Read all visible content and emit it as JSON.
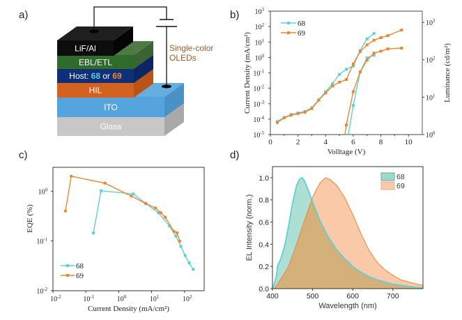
{
  "panels": {
    "a": {
      "label": "a)",
      "layers": [
        {
          "name": "LiF/Al",
          "front": "#0d0d0d",
          "top": "#1f1f1f",
          "side": "#050505",
          "text_color": "#ffffff"
        },
        {
          "name": "EBL/ETL",
          "front": "#2f6b2a",
          "top": "#4f7a45",
          "side": "#3d6335",
          "text_color": "#ffffff"
        },
        {
          "name": "Host",
          "front": "#0f2f78",
          "top": "#1f3b85",
          "side": "#0b2664",
          "text_color": "#ffffff"
        },
        {
          "name": "HIL",
          "front": "#d4621f",
          "top": "#c9692b",
          "side": "#b85418",
          "text_color": "#ffffff"
        },
        {
          "name": "ITO",
          "front": "#55a4dd",
          "top": "#66aee2",
          "side": "#4a91c6",
          "text_color": "#ffffff"
        },
        {
          "name": "Glass",
          "front": "#c7c7c7",
          "top": "#d4d4d4",
          "side": "#a9a9a9",
          "text_color": "#ffffff"
        }
      ],
      "host_prefix": "Host: ",
      "host_68": "68",
      "host_or": " or ",
      "host_69": "69",
      "host_68_color": "#4fd1de",
      "host_69_color": "#f08a3a",
      "caption_line1": "Single-color",
      "caption_line2": "OLEDs",
      "caption_color": "#9a5a2a"
    },
    "b": {
      "label": "b)"
    },
    "c": {
      "label": "c)"
    },
    "d": {
      "label": "d)"
    }
  },
  "colors": {
    "series_68": "#5fd0d3",
    "series_69": "#ef8434",
    "fill_68": "#9fd9cc",
    "fill_69": "#f9c9a8",
    "overlap": "#d4b07a"
  },
  "chart_data": [
    {
      "id": "b",
      "type": "line",
      "title": "",
      "xlabel": "Volltage (V)",
      "ylabel": "Current Density (mA/cm²)",
      "y2label": "Luminance (cd/m²)",
      "xlim": [
        0,
        11
      ],
      "ylim_log10": [
        -5,
        3
      ],
      "y2lim_log10": [
        0,
        3.3
      ],
      "xticks": [
        0,
        2,
        4,
        6,
        8,
        10
      ],
      "xtick_labels": [
        "0",
        "2",
        "4",
        "6",
        "8",
        "10"
      ],
      "yticks_exp": [
        3,
        2,
        1,
        0,
        -1,
        -2,
        -3,
        -4,
        -5
      ],
      "y2ticks_exp": [
        0,
        1,
        2,
        3
      ],
      "legend": {
        "position": "top-left",
        "entries": [
          "68",
          "69"
        ]
      },
      "series": [
        {
          "name": "68",
          "axis": "left",
          "quantity": "current_density",
          "x": [
            0.5,
            1.0,
            1.5,
            2.0,
            2.5,
            3.0,
            3.5,
            4.0,
            4.5,
            5.0,
            5.5,
            6.0,
            6.5,
            7.0,
            7.5
          ],
          "y": [
            7e-05,
            0.00013,
            0.0002,
            0.00025,
            0.00032,
            0.00055,
            0.0018,
            0.006,
            0.02,
            0.08,
            0.17,
            0.28,
            2.8,
            16,
            35
          ]
        },
        {
          "name": "69",
          "axis": "left",
          "quantity": "current_density",
          "x": [
            0.5,
            1.0,
            1.5,
            2.0,
            2.5,
            3.0,
            3.5,
            4.0,
            4.5,
            5.0,
            5.5,
            6.0,
            6.5,
            7.0,
            7.5,
            8.0,
            8.5,
            9.5
          ],
          "y": [
            6e-05,
            0.00012,
            0.00018,
            0.00023,
            0.00028,
            0.00048,
            0.0017,
            0.005,
            0.014,
            0.025,
            0.037,
            0.38,
            2.4,
            6.5,
            13,
            19,
            26,
            60
          ]
        },
        {
          "name": "68",
          "axis": "right",
          "quantity": "luminance",
          "x": [
            5.65,
            6.0,
            6.5,
            7.0,
            7.5
          ],
          "y": [
            1.0,
            6,
            47,
            112,
            132
          ]
        },
        {
          "name": "69",
          "axis": "right",
          "quantity": "luminance",
          "x": [
            5.4,
            5.5,
            6.0,
            6.5,
            7.0,
            7.5,
            8.0,
            8.5,
            9.5
          ],
          "y": [
            1.0,
            1.8,
            14,
            47,
            97,
            150,
            170,
            195,
            205
          ]
        }
      ]
    },
    {
      "id": "c",
      "type": "line",
      "title": "",
      "xlabel": "Current Density (mA/cm²)",
      "ylabel": "EQE (%)",
      "xlim_log10": [
        -2,
        2.6
      ],
      "ylim_log10": [
        -2,
        0.48
      ],
      "xticks_exp": [
        -2,
        -1,
        0,
        1,
        2
      ],
      "yticks_exp": [
        0,
        -1,
        -2
      ],
      "legend": {
        "position": "bottom-left",
        "entries": [
          "68",
          "69"
        ]
      },
      "series": [
        {
          "name": "68",
          "x": [
            0.17,
            0.29,
            2.8,
            6.8,
            16,
            35,
            55,
            78,
            105,
            140,
            185
          ],
          "y": [
            0.145,
            1.02,
            0.88,
            0.56,
            0.37,
            0.2,
            0.125,
            0.078,
            0.051,
            0.036,
            0.027
          ]
        },
        {
          "name": "69",
          "x": [
            0.024,
            0.036,
            0.38,
            2.4,
            6.5,
            13,
            19,
            26,
            48,
            60,
            72
          ],
          "y": [
            0.4,
            2.0,
            1.45,
            0.8,
            0.57,
            0.46,
            0.37,
            0.3,
            0.155,
            0.145,
            0.099
          ]
        }
      ]
    },
    {
      "id": "d",
      "type": "area",
      "title": "",
      "xlabel": "Wavelength (nm)",
      "ylabel": "EL Intensity (norm.)",
      "xlim": [
        400,
        775
      ],
      "ylim": [
        0,
        1.1
      ],
      "xticks": [
        400,
        500,
        600,
        700
      ],
      "xtick_labels": [
        "400",
        "500",
        "600",
        "700"
      ],
      "yticks": [
        0.0,
        0.2,
        0.4,
        0.6,
        0.8,
        1.0
      ],
      "ytick_labels": [
        "0.0",
        "0.2",
        "0.4",
        "0.6",
        "0.8",
        "1.0"
      ],
      "legend": {
        "position": "top-right",
        "entries": [
          "68",
          "69"
        ]
      },
      "series": [
        {
          "name": "68",
          "peak_nm": 474,
          "x": [
            400,
            405,
            410,
            413,
            420,
            430,
            440,
            450,
            460,
            468,
            474,
            480,
            490,
            500,
            520,
            540,
            560,
            580,
            600,
            620,
            640,
            660,
            680,
            700,
            720,
            740,
            760,
            775
          ],
          "y": [
            0.0,
            0.05,
            0.12,
            0.21,
            0.26,
            0.38,
            0.56,
            0.77,
            0.93,
            0.99,
            1.0,
            0.97,
            0.88,
            0.78,
            0.6,
            0.46,
            0.35,
            0.27,
            0.2,
            0.15,
            0.11,
            0.08,
            0.06,
            0.04,
            0.03,
            0.02,
            0.01,
            0.005
          ]
        },
        {
          "name": "69",
          "peak_nm": 533,
          "x": [
            405,
            410,
            420,
            440,
            460,
            480,
            500,
            510,
            520,
            533,
            545,
            560,
            580,
            600,
            620,
            640,
            660,
            680,
            700,
            720,
            740,
            760,
            775
          ],
          "y": [
            0.0,
            0.03,
            0.08,
            0.2,
            0.4,
            0.62,
            0.82,
            0.9,
            0.96,
            1.0,
            0.98,
            0.93,
            0.82,
            0.67,
            0.5,
            0.35,
            0.24,
            0.17,
            0.12,
            0.08,
            0.06,
            0.04,
            0.03
          ]
        }
      ]
    }
  ]
}
